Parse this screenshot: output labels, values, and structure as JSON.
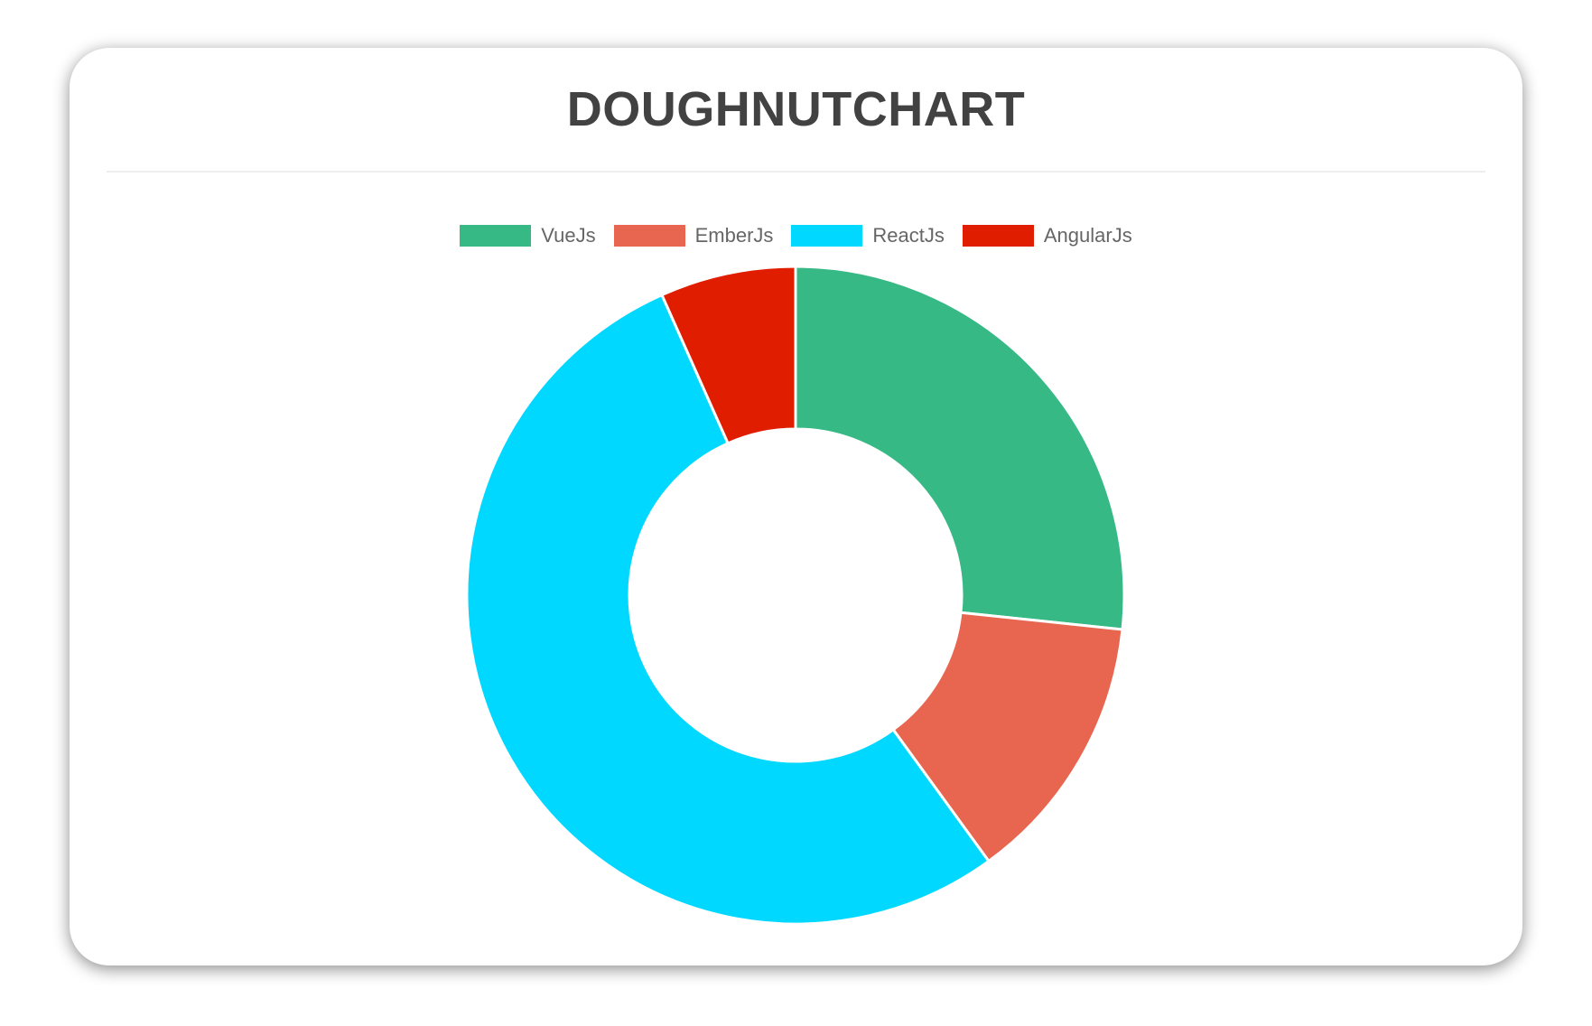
{
  "chart_data": {
    "type": "doughnut",
    "title": "DOUGHNUTCHART",
    "categories": [
      "VueJs",
      "EmberJs",
      "ReactJs",
      "AngularJs"
    ],
    "values": [
      40,
      20,
      80,
      10
    ],
    "colors": [
      "#36B985",
      "#E8664F",
      "#00D8FF",
      "#E11D00"
    ],
    "legend": "top"
  }
}
